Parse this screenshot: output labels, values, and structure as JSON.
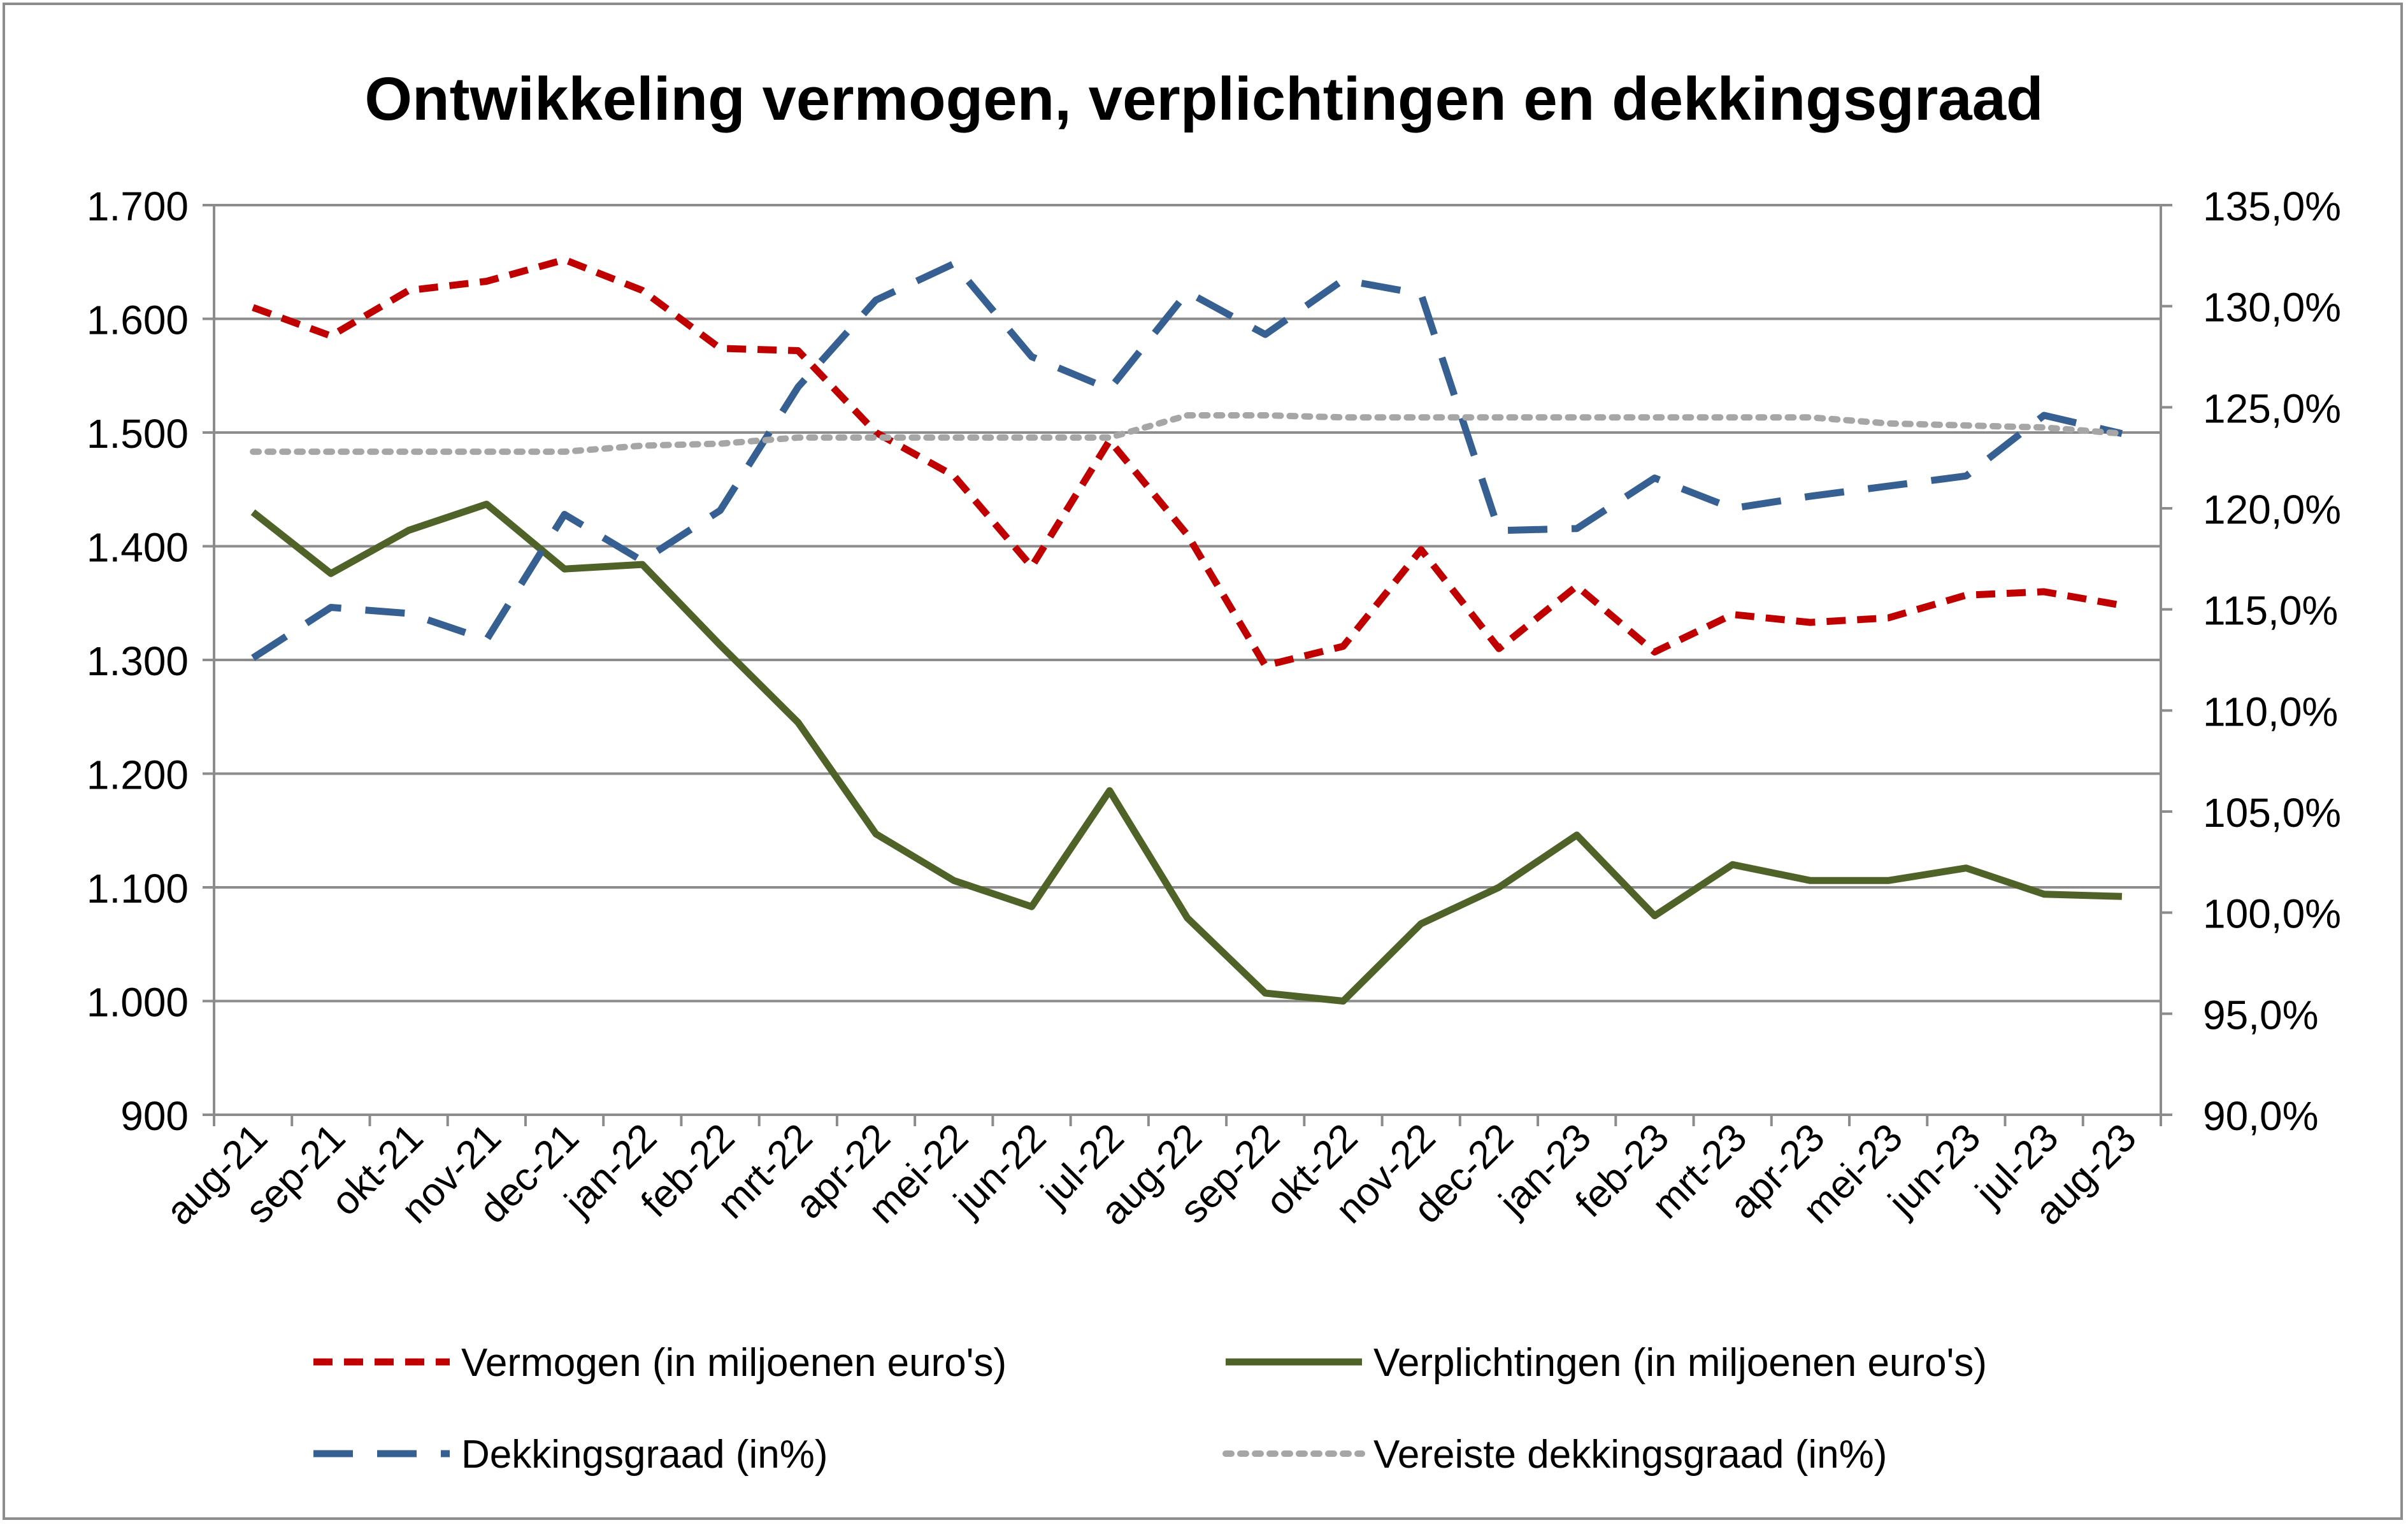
{
  "chart_data": {
    "type": "line",
    "title": "Ontwikkeling vermogen, verplichtingen en dekkingsgraad",
    "xlabel": "",
    "ylabel": "",
    "y2label": "",
    "categories": [
      "aug-21",
      "sep-21",
      "okt-21",
      "nov-21",
      "dec-21",
      "jan-22",
      "feb-22",
      "mrt-22",
      "apr-22",
      "mei-22",
      "jun-22",
      "jul-22",
      "aug-22",
      "sep-22",
      "okt-22",
      "nov-22",
      "dec-22",
      "jan-23",
      "feb-23",
      "mrt-23",
      "apr-23",
      "mei-23",
      "jun-23",
      "jul-23",
      "aug-23"
    ],
    "ylim": [
      900,
      1700
    ],
    "y_ticks": [
      "900",
      "1.000",
      "1.100",
      "1.200",
      "1.300",
      "1.400",
      "1.500",
      "1.600",
      "1.700"
    ],
    "y_tick_values": [
      900,
      1000,
      1100,
      1200,
      1300,
      1400,
      1500,
      1600,
      1700
    ],
    "y2lim": [
      90,
      135
    ],
    "y2_ticks": [
      "90,0%",
      "95,0%",
      "100,0%",
      "105,0%",
      "110,0%",
      "115,0%",
      "120,0%",
      "125,0%",
      "130,0%",
      "135,0%"
    ],
    "y2_tick_values": [
      90,
      95,
      100,
      105,
      110,
      115,
      120,
      125,
      130,
      135
    ],
    "grid": true,
    "legend_position": "bottom",
    "series": [
      {
        "name": "Vermogen (in miljoenen euro's)",
        "axis": "left",
        "color": "#c00000",
        "style": "dash",
        "values": [
          1610,
          1585,
          1625,
          1633,
          1652,
          1625,
          1574,
          1572,
          1500,
          1462,
          1382,
          1493,
          1410,
          1295,
          1312,
          1397,
          1310,
          1365,
          1307,
          1340,
          1333,
          1337,
          1357,
          1360,
          1348
        ]
      },
      {
        "name": "Verplichtingen (in miljoenen euro's)",
        "axis": "left",
        "color": "#4f6228",
        "style": "solid",
        "values": [
          1430,
          1376,
          1414,
          1437,
          1380,
          1384,
          1313,
          1245,
          1147,
          1106,
          1083,
          1185,
          1073,
          1007,
          1000,
          1068,
          1100,
          1146,
          1075,
          1120,
          1106,
          1106,
          1117,
          1094,
          1092
        ]
      },
      {
        "name": "Dekkingsgraad (in%)",
        "axis": "right",
        "color": "#376092",
        "style": "longdash",
        "values": [
          112.6,
          115.1,
          114.8,
          113.5,
          119.7,
          117.4,
          119.9,
          126.0,
          130.3,
          132.1,
          127.5,
          125.9,
          130.7,
          128.6,
          131.3,
          130.6,
          118.9,
          119.0,
          121.5,
          120.0,
          120.6,
          121.1,
          121.6,
          124.6,
          123.7
        ]
      },
      {
        "name": "Vereiste dekkingsgraad (in%)",
        "axis": "right",
        "color": "#a6a6a6",
        "style": "dot",
        "values": [
          122.8,
          122.8,
          122.8,
          122.8,
          122.8,
          123.1,
          123.2,
          123.5,
          123.5,
          123.5,
          123.5,
          123.5,
          124.6,
          124.6,
          124.5,
          124.5,
          124.5,
          124.5,
          124.5,
          124.5,
          124.5,
          124.2,
          124.1,
          124.0,
          123.7
        ]
      }
    ]
  }
}
